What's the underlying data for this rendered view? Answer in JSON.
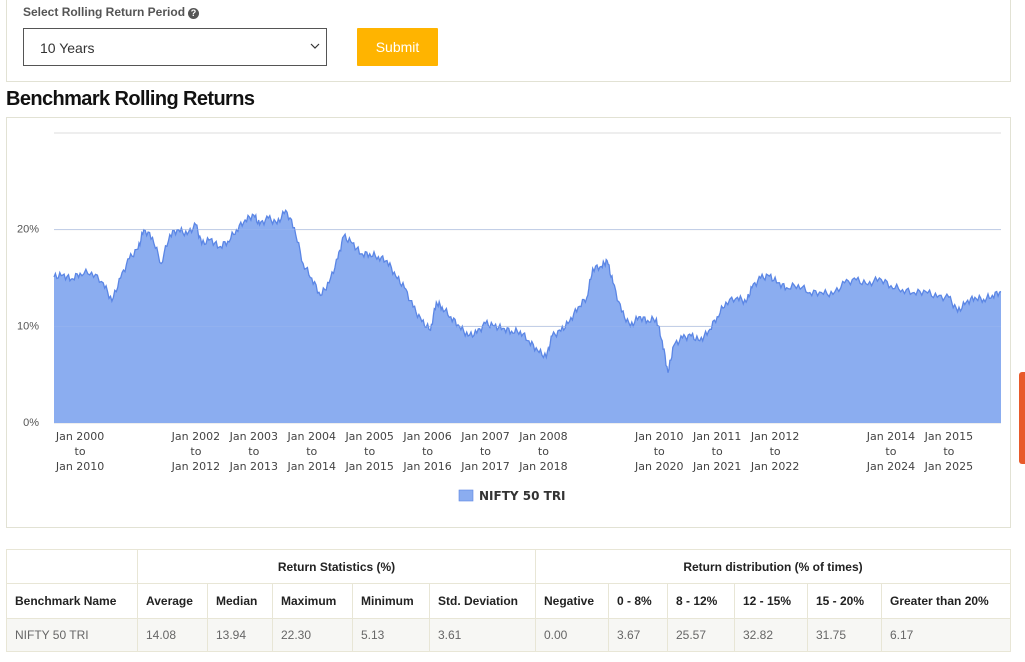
{
  "period": {
    "label": "Select Rolling Return Period",
    "selected": "10 Years",
    "submit_label": "Submit"
  },
  "page_title": "Benchmark Rolling Returns",
  "chart_data": {
    "type": "area",
    "y_ticks": [
      "0%",
      "10%",
      "20%"
    ],
    "ylim": [
      0,
      30
    ],
    "grid": true,
    "legend_position": "bottom-center",
    "x_ticks": [
      {
        "x": 2000.0,
        "l1": "Jan 2000",
        "l2": "to",
        "l3": "Jan 2010"
      },
      {
        "x": 2002.0,
        "l1": "Jan 2002",
        "l2": "to",
        "l3": "Jan 2012"
      },
      {
        "x": 2003.0,
        "l1": "Jan 2003",
        "l2": "to",
        "l3": "Jan 2013"
      },
      {
        "x": 2004.0,
        "l1": "Jan 2004",
        "l2": "to",
        "l3": "Jan 2014"
      },
      {
        "x": 2005.0,
        "l1": "Jan 2005",
        "l2": "to",
        "l3": "Jan 2015"
      },
      {
        "x": 2006.0,
        "l1": "Jan 2006",
        "l2": "to",
        "l3": "Jan 2016"
      },
      {
        "x": 2007.0,
        "l1": "Jan 2007",
        "l2": "to",
        "l3": "Jan 2017"
      },
      {
        "x": 2008.0,
        "l1": "Jan 2008",
        "l2": "to",
        "l3": "Jan 2018"
      },
      {
        "x": 2010.0,
        "l1": "Jan 2010",
        "l2": "to",
        "l3": "Jan 2020"
      },
      {
        "x": 2011.0,
        "l1": "Jan 2011",
        "l2": "to",
        "l3": "Jan 2021"
      },
      {
        "x": 2012.0,
        "l1": "Jan 2012",
        "l2": "to",
        "l3": "Jan 2022"
      },
      {
        "x": 2014.0,
        "l1": "Jan 2014",
        "l2": "to",
        "l3": "Jan 2024"
      },
      {
        "x": 2015.0,
        "l1": "Jan 2015",
        "l2": "to",
        "l3": "Jan 2025"
      }
    ],
    "xlim": [
      1999.55,
      2015.9
    ],
    "series": [
      {
        "name": "NIFTY 50 TRI",
        "color": "#8badf0",
        "line_color": "#5b86e5",
        "points": [
          [
            1999.55,
            15.1
          ],
          [
            1999.7,
            15.3
          ],
          [
            1999.85,
            14.9
          ],
          [
            2000.0,
            15.5
          ],
          [
            2000.2,
            15.6
          ],
          [
            2000.4,
            14.5
          ],
          [
            2000.55,
            12.6
          ],
          [
            2000.7,
            15.0
          ],
          [
            2000.85,
            17.0
          ],
          [
            2001.0,
            18.0
          ],
          [
            2001.1,
            20.0
          ],
          [
            2001.25,
            19.2
          ],
          [
            2001.4,
            16.5
          ],
          [
            2001.55,
            19.5
          ],
          [
            2001.7,
            20.0
          ],
          [
            2001.85,
            19.5
          ],
          [
            2002.0,
            20.5
          ],
          [
            2002.1,
            18.5
          ],
          [
            2002.25,
            19.0
          ],
          [
            2002.4,
            18.2
          ],
          [
            2002.55,
            18.8
          ],
          [
            2002.7,
            20.0
          ],
          [
            2002.85,
            21.0
          ],
          [
            2003.0,
            21.5
          ],
          [
            2003.1,
            20.5
          ],
          [
            2003.25,
            21.2
          ],
          [
            2003.4,
            20.6
          ],
          [
            2003.55,
            22.0
          ],
          [
            2003.7,
            20.2
          ],
          [
            2003.85,
            16.5
          ],
          [
            2004.0,
            15.0
          ],
          [
            2004.15,
            13.2
          ],
          [
            2004.3,
            14.5
          ],
          [
            2004.45,
            17.0
          ],
          [
            2004.55,
            19.3
          ],
          [
            2004.7,
            18.6
          ],
          [
            2004.85,
            17.5
          ],
          [
            2005.0,
            17.5
          ],
          [
            2005.15,
            17.2
          ],
          [
            2005.3,
            16.8
          ],
          [
            2005.45,
            15.2
          ],
          [
            2005.6,
            14.0
          ],
          [
            2005.75,
            12.0
          ],
          [
            2005.9,
            10.5
          ],
          [
            2006.05,
            9.6
          ],
          [
            2006.15,
            12.5
          ],
          [
            2006.25,
            12.0
          ],
          [
            2006.4,
            11.0
          ],
          [
            2006.55,
            10.0
          ],
          [
            2006.7,
            9.0
          ],
          [
            2006.85,
            9.3
          ],
          [
            2007.0,
            10.3
          ],
          [
            2007.15,
            10.0
          ],
          [
            2007.3,
            9.8
          ],
          [
            2007.45,
            9.5
          ],
          [
            2007.6,
            9.5
          ],
          [
            2007.75,
            8.5
          ],
          [
            2007.9,
            7.5
          ],
          [
            2008.05,
            6.8
          ],
          [
            2008.15,
            9.0
          ],
          [
            2008.3,
            9.5
          ],
          [
            2008.45,
            10.5
          ],
          [
            2008.6,
            12.0
          ],
          [
            2008.75,
            13.0
          ],
          [
            2008.85,
            16.0
          ],
          [
            2009.0,
            16.2
          ],
          [
            2009.1,
            16.8
          ],
          [
            2009.2,
            14.5
          ],
          [
            2009.35,
            11.5
          ],
          [
            2009.5,
            10.0
          ],
          [
            2009.65,
            11.0
          ],
          [
            2009.8,
            10.6
          ],
          [
            2009.95,
            10.8
          ],
          [
            2010.05,
            8.5
          ],
          [
            2010.15,
            5.2
          ],
          [
            2010.25,
            8.0
          ],
          [
            2010.4,
            8.8
          ],
          [
            2010.55,
            9.0
          ],
          [
            2010.7,
            8.5
          ],
          [
            2010.85,
            9.5
          ],
          [
            2011.0,
            11.0
          ],
          [
            2011.15,
            12.5
          ],
          [
            2011.35,
            13.0
          ],
          [
            2011.5,
            12.5
          ],
          [
            2011.6,
            14.0
          ],
          [
            2011.75,
            15.0
          ],
          [
            2011.9,
            15.2
          ],
          [
            2012.05,
            14.5
          ],
          [
            2012.2,
            14.0
          ],
          [
            2012.4,
            14.3
          ],
          [
            2012.6,
            13.5
          ],
          [
            2012.8,
            13.5
          ],
          [
            2013.0,
            13.3
          ],
          [
            2013.2,
            14.5
          ],
          [
            2013.4,
            14.8
          ],
          [
            2013.6,
            14.3
          ],
          [
            2013.8,
            15.0
          ],
          [
            2014.0,
            14.2
          ],
          [
            2014.2,
            13.8
          ],
          [
            2014.4,
            13.5
          ],
          [
            2014.6,
            13.6
          ],
          [
            2014.8,
            13.0
          ],
          [
            2015.0,
            13.0
          ],
          [
            2015.15,
            11.5
          ],
          [
            2015.3,
            12.5
          ],
          [
            2015.45,
            13.0
          ],
          [
            2015.6,
            12.8
          ],
          [
            2015.75,
            13.2
          ],
          [
            2015.9,
            13.6
          ]
        ]
      }
    ]
  },
  "table": {
    "group_headers": [
      "Return Statistics (%)",
      "Return distribution (% of times)"
    ],
    "columns": [
      "Benchmark Name",
      "Average",
      "Median",
      "Maximum",
      "Minimum",
      "Std. Deviation",
      "Negative",
      "0 - 8%",
      "8 - 12%",
      "12 - 15%",
      "15 - 20%",
      "Greater than 20%"
    ],
    "rows": [
      [
        "NIFTY 50 TRI",
        "14.08",
        "13.94",
        "22.30",
        "5.13",
        "3.61",
        "0.00",
        "3.67",
        "25.57",
        "32.82",
        "31.75",
        "6.17"
      ]
    ]
  }
}
